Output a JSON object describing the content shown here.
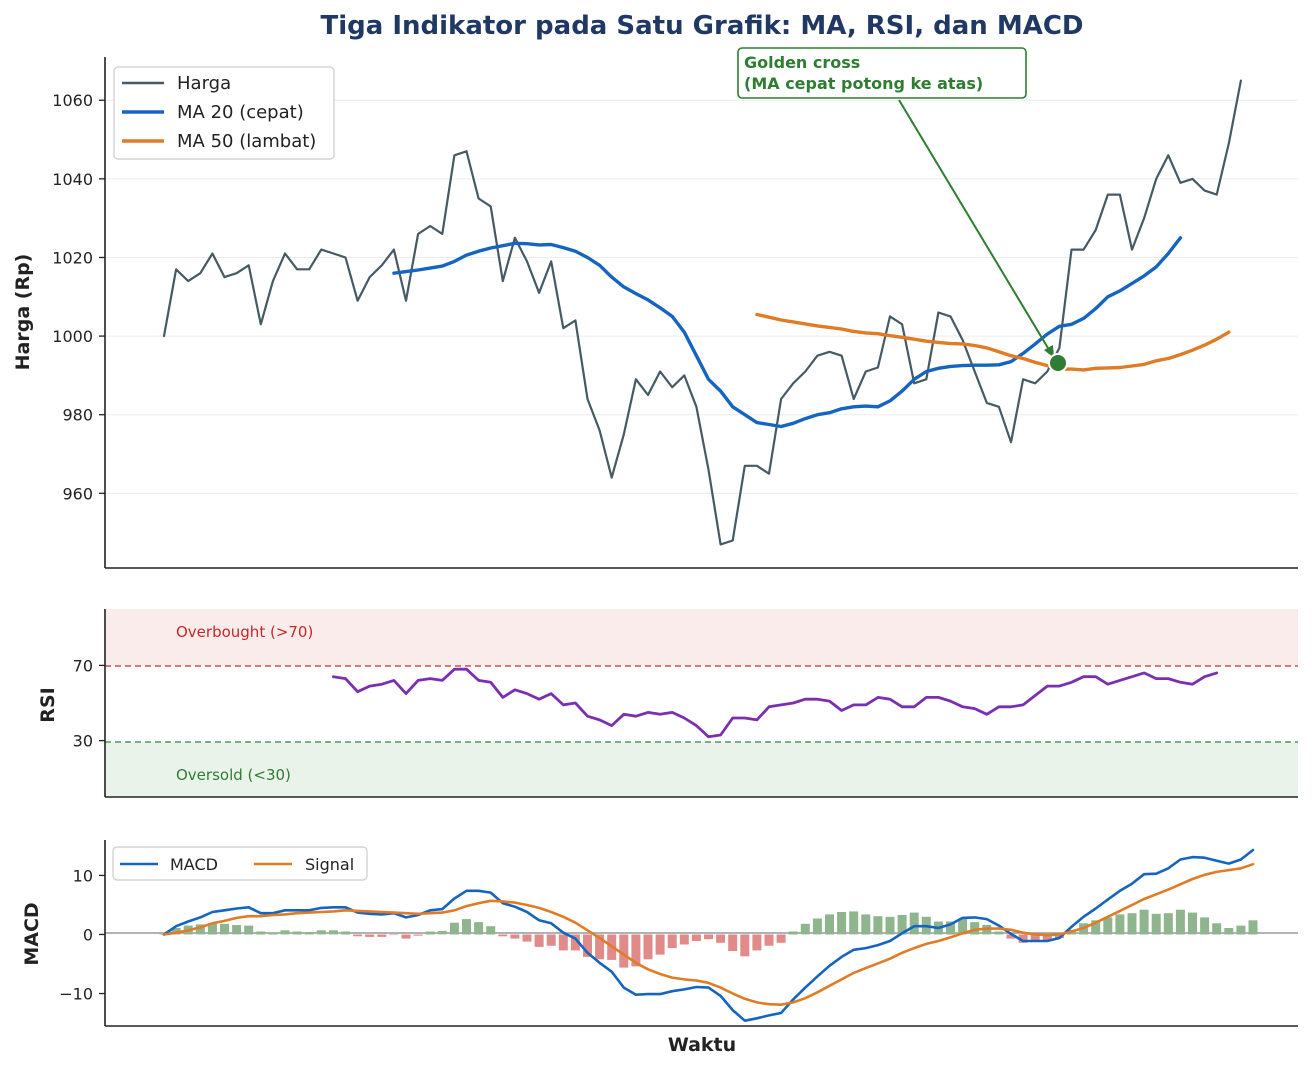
{
  "title": "Tiga Indikator pada Satu Grafik: MA, RSI, dan MACD",
  "xlabel": "Waktu",
  "colors": {
    "price": "#455a64",
    "ma_fast": "#1565c0",
    "ma_slow": "#e07b26",
    "rsi": "#7b2fb0",
    "overbought": "#d05050",
    "oversold": "#4a9a5a",
    "macd": "#1565c0",
    "signal": "#e07b26",
    "hist_pos": "#8fb58f",
    "hist_neg": "#e08a8a",
    "annotation": "#2e7d32"
  },
  "panels": {
    "price": {
      "ylabel": "Harga (Rp)",
      "yticks": [
        "960",
        "980",
        "1000",
        "1020",
        "1040",
        "1060"
      ],
      "legend": [
        "Harga",
        "MA 20 (cepat)",
        "MA 50 (lambat)"
      ],
      "annotation": {
        "line1": "Golden cross",
        "line2": "(MA cepat potong ke atas)"
      }
    },
    "rsi": {
      "ylabel": "RSI",
      "yticks": [
        "30",
        "70"
      ],
      "overbought_label": "Overbought (>70)",
      "oversold_label": "Oversold (<30)"
    },
    "macd": {
      "ylabel": "MACD",
      "yticks": [
        "−10",
        "0",
        "10"
      ],
      "legend": [
        "MACD",
        "Signal"
      ]
    }
  },
  "chart_data": [
    {
      "type": "line",
      "panel": "price",
      "ylabel": "Harga (Rp)",
      "ylim": [
        941,
        1071
      ],
      "x_start": 0,
      "grid": true,
      "legend_position": "top-left",
      "series": [
        {
          "name": "Harga",
          "x_start": 0,
          "values": [
            1000,
            1017,
            1014,
            1016,
            1021,
            1015,
            1016,
            1018,
            1003,
            1014,
            1021,
            1017,
            1017,
            1022,
            1021,
            1020,
            1009,
            1015,
            1018,
            1022,
            1009,
            1026,
            1028,
            1026,
            1046,
            1047,
            1035,
            1033,
            1014,
            1025,
            1019,
            1011,
            1019,
            1002,
            1004,
            984,
            976,
            964,
            975,
            989,
            985,
            991,
            987,
            990,
            982,
            966,
            947,
            948,
            967,
            967,
            965,
            984,
            988,
            991,
            995,
            996,
            995,
            984,
            991,
            992,
            1005,
            1003,
            988,
            989,
            1006,
            1005,
            999,
            991,
            983,
            982,
            973,
            989,
            988,
            991,
            997,
            1022,
            1022,
            1027,
            1036,
            1036,
            1022,
            1030,
            1040,
            1046,
            1039,
            1040,
            1037,
            1036,
            1049,
            1065
          ]
        },
        {
          "name": "MA 20 (cepat)",
          "x_start": 19,
          "values": [
            1016,
            1016.4,
            1016.8,
            1017.3,
            1017.8,
            1019,
            1020.6,
            1021.6,
            1022.4,
            1023,
            1023.6,
            1023.5,
            1023.2,
            1023.3,
            1022.5,
            1021.6,
            1020,
            1018,
            1015,
            1012.5,
            1010.8,
            1009.2,
            1007.2,
            1005,
            1001,
            995,
            989,
            986,
            982,
            980,
            978,
            977.5,
            977,
            977.8,
            979,
            980,
            980.5,
            981.5,
            982,
            982.2,
            982,
            983.5,
            986,
            989,
            991,
            991.8,
            992.3,
            992.5,
            992.6,
            992.6,
            992.7,
            993.5,
            995.6,
            998,
            1000.5,
            1002.5,
            1003,
            1004.5,
            1007,
            1010,
            1011.5,
            1013.4,
            1015.3,
            1017.6,
            1021,
            1025
          ]
        },
        {
          "name": "MA 50 (lambat)",
          "x_start": 49,
          "values": [
            1005.5,
            1004.8,
            1004.1,
            1003.6,
            1003.1,
            1002.6,
            1002.2,
            1001.8,
            1001.2,
            1000.8,
            1000.6,
            1000.1,
            999.7,
            999.2,
            998.7,
            998.4,
            998.1,
            998,
            997.6,
            997,
            996,
            995,
            994.3,
            993.3,
            992.5,
            991.6,
            991.6,
            991.4,
            991.8,
            991.9,
            992,
            992.4,
            992.8,
            993.7,
            994.3,
            995.3,
            996.4,
            997.7,
            999.2,
            1001
          ]
        }
      ],
      "annotations": [
        {
          "text": "Golden cross (MA cepat potong ke atas)",
          "x": 74,
          "y": 992.6
        }
      ]
    },
    {
      "type": "line",
      "panel": "rsi",
      "ylabel": "RSI",
      "ylim": [
        0,
        100
      ],
      "hlines": [
        70,
        30
      ],
      "zones": [
        {
          "label": "Overbought (>70)",
          "range": [
            70,
            100
          ]
        },
        {
          "label": "Oversold (<30)",
          "range": [
            0,
            30
          ]
        }
      ],
      "series": [
        {
          "name": "RSI",
          "x_start": 14,
          "values": [
            64,
            63,
            56,
            59,
            60,
            62,
            55,
            62,
            63,
            62,
            68,
            68,
            62,
            61,
            53,
            57,
            55,
            52,
            55,
            49,
            50,
            43,
            41,
            38,
            44,
            43,
            45,
            44,
            45,
            42,
            38,
            32,
            33,
            42,
            42,
            41,
            48,
            49,
            50,
            52,
            52,
            51,
            46,
            49,
            49,
            53,
            52,
            48,
            48,
            53,
            53,
            51,
            48,
            47,
            44,
            48,
            48,
            49,
            54,
            59,
            59,
            61,
            64,
            64,
            60,
            62,
            64,
            66,
            63,
            63,
            61,
            60,
            64,
            66
          ]
        }
      ]
    },
    {
      "type": "line",
      "panel": "macd",
      "ylabel": "MACD",
      "ylim": [
        -15.5,
        16
      ],
      "legend_position": "top-left",
      "series": [
        {
          "name": "MACD",
          "x_start": 0,
          "values": [
            0,
            1.4,
            2.2,
            2.9,
            3.8,
            4.1,
            4.4,
            4.6,
            3.6,
            3.6,
            4.1,
            4.1,
            4.1,
            4.5,
            4.6,
            4.6,
            3.7,
            3.5,
            3.4,
            3.6,
            2.9,
            3.3,
            4.1,
            4.3,
            6.1,
            7.4,
            7.4,
            7.1,
            5.3,
            4.7,
            3.8,
            2.4,
            1.9,
            0.3,
            -0.7,
            -3.1,
            -4.8,
            -6.3,
            -9,
            -10.2,
            -10.1,
            -10.1,
            -9.6,
            -9.3,
            -8.9,
            -9,
            -10.4,
            -12.8,
            -14.6,
            -14.2,
            -13.7,
            -13.3,
            -11,
            -9,
            -7.1,
            -5.3,
            -3.8,
            -2.6,
            -2.3,
            -1.8,
            -1.1,
            0.2,
            1.4,
            1.4,
            1.1,
            1.7,
            2.8,
            2.9,
            2.6,
            1.5,
            0.1,
            -1.1,
            -1.1,
            -1.1,
            -0.6,
            1.3,
            3,
            4.4,
            5.9,
            7.4,
            8.6,
            10.2,
            10.3,
            11.2,
            12.7,
            13.1,
            13,
            12.5,
            12,
            12.7,
            14.3
          ]
        },
        {
          "name": "Signal",
          "x_start": 0,
          "values": [
            0,
            0.3,
            0.7,
            1.2,
            1.9,
            2.3,
            2.8,
            3.1,
            3.1,
            3.3,
            3.4,
            3.6,
            3.7,
            3.8,
            3.9,
            4.1,
            4,
            3.9,
            3.8,
            3.7,
            3.6,
            3.5,
            3.6,
            3.7,
            4.1,
            4.8,
            5.3,
            5.7,
            5.6,
            5.4,
            5,
            4.5,
            3.8,
            3,
            2,
            0.7,
            -0.6,
            -2,
            -3.4,
            -4.8,
            -5.9,
            -6.7,
            -7.3,
            -7.6,
            -7.8,
            -8.2,
            -9,
            -10,
            -10.9,
            -11.5,
            -11.8,
            -11.9,
            -11.5,
            -10.8,
            -9.8,
            -8.7,
            -7.6,
            -6.5,
            -5.7,
            -4.9,
            -4.1,
            -3.1,
            -2.3,
            -1.6,
            -1.1,
            -0.5,
            0.2,
            0.8,
            1,
            1,
            0.8,
            0.3,
            0,
            -0.1,
            0,
            0.5,
            1.1,
            2,
            3,
            4,
            5,
            6,
            6.8,
            7.6,
            8.5,
            9.4,
            10.1,
            10.6,
            10.9,
            11.2,
            11.9
          ]
        },
        {
          "name": "Histogram",
          "type": "bar",
          "x_start": 0,
          "values": [
            0,
            1.1,
            1.5,
            1.7,
            1.9,
            1.8,
            1.6,
            1.5,
            0.5,
            0.3,
            0.7,
            0.5,
            0.4,
            0.7,
            0.7,
            0.5,
            -0.3,
            -0.4,
            -0.4,
            -0.1,
            -0.7,
            -0.2,
            0.5,
            0.6,
            2,
            2.6,
            2.1,
            1.4,
            -0.3,
            -0.7,
            -1.2,
            -2.1,
            -1.9,
            -2.7,
            -2.7,
            -3.8,
            -4.2,
            -4.3,
            -5.6,
            -5.4,
            -4.2,
            -3.4,
            -2.3,
            -1.7,
            -1.1,
            -0.8,
            -1.4,
            -2.8,
            -3.7,
            -2.7,
            -1.9,
            -1.4,
            0.5,
            1.8,
            2.7,
            3.4,
            3.8,
            3.9,
            3.4,
            3.1,
            3,
            3.3,
            3.7,
            3,
            2.2,
            2.2,
            2.6,
            2.1,
            1.6,
            0.5,
            -0.7,
            -1.4,
            -1.1,
            -1,
            -0.6,
            0.8,
            1.9,
            2.4,
            2.9,
            3.4,
            3.6,
            4.2,
            3.5,
            3.6,
            4.2,
            3.7,
            2.9,
            1.9,
            1.1,
            1.5,
            2.4
          ]
        }
      ]
    }
  ]
}
